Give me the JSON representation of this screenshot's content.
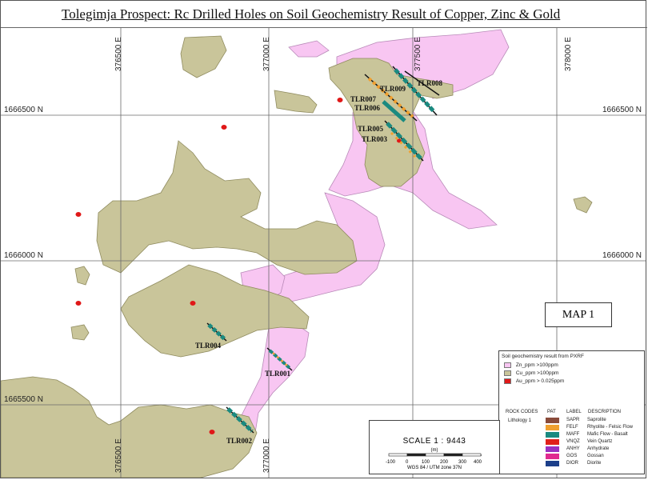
{
  "title": "Tolegimja Prospect: Rc Drilled Holes on Soil Geochemistry Result of Copper, Zinc & Gold",
  "grid": {
    "eastings": [
      "376500 E",
      "377000 E",
      "377500 E",
      "378000 E"
    ],
    "northings_left": [
      "1666500 N",
      "1666000 N",
      "1665500 N"
    ],
    "northings_right": [
      "1666500 N",
      "1666000 N"
    ]
  },
  "drill_holes": [
    "TLR009",
    "TLR008",
    "TLR007",
    "TLR006",
    "TLR005",
    "TLR003",
    "TLR004",
    "TLR001",
    "TLR002"
  ],
  "map_label": "MAP 1",
  "legend": {
    "title": "Soil geochemistry result from PXRF",
    "items": [
      {
        "label": "Zn_ppm >100ppm",
        "color": "#f8c6f2"
      },
      {
        "label": "Cu_ppm >100ppm",
        "color": "#c9c59a"
      },
      {
        "label": "Au_ppm > 0.025ppm",
        "color": "#e01818"
      }
    ],
    "rock_headers": {
      "codes": "ROCK CODES",
      "pat": "PAT",
      "label": "LABEL",
      "description": "DESCRIPTION"
    },
    "lithology": "Lithology 1",
    "rocks": [
      {
        "code": "SAPR",
        "desc": "Saprolite",
        "color": "#8a4b3a"
      },
      {
        "code": "FELF",
        "desc": "Rhyolite - Felsic Flow",
        "color": "#f0a030"
      },
      {
        "code": "MAFF",
        "desc": "Mafic Flow - Basalt",
        "color": "#1b8a80"
      },
      {
        "code": "VNQZ",
        "desc": "Vein Quartz",
        "color": "#e0201a"
      },
      {
        "code": "ANHY",
        "desc": "Anhydrate",
        "color": "#9a30c0"
      },
      {
        "code": "GOS",
        "desc": "Gossan",
        "color": "#e02a90"
      },
      {
        "code": "DIOR",
        "desc": "Diorite",
        "color": "#1c3f8a"
      }
    ]
  },
  "scale": {
    "text": "SCALE  1 : 9443",
    "unit": "(m)",
    "ticks": [
      "-100",
      "0",
      "100",
      "200",
      "300",
      "400"
    ],
    "projection": "WGS 84 / UTM zone 37N"
  }
}
